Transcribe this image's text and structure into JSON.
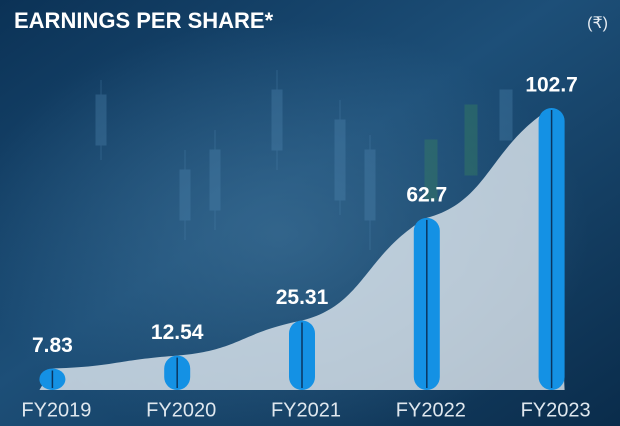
{
  "chart_data": {
    "type": "bar",
    "title": "EARNINGS PER SHARE*",
    "unit": "(₹)",
    "categories": [
      "FY2019",
      "FY2020",
      "FY2021",
      "FY2022",
      "FY2023"
    ],
    "values": [
      7.83,
      12.54,
      25.31,
      62.7,
      102.7
    ],
    "color": "#1491e4"
  }
}
